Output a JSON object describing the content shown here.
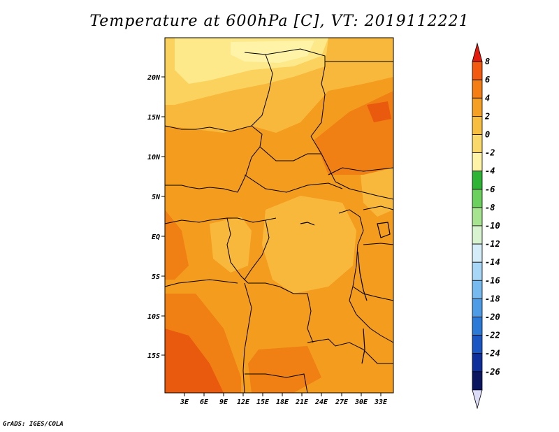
{
  "title": "Temperature at 600hPa [C], VT: 2019112221",
  "credit": "GrADS: IGES/COLA",
  "map": {
    "lat_labels": [
      "20N",
      "15N",
      "10N",
      "5N",
      "EQ",
      "5S",
      "10S",
      "15S"
    ],
    "lon_labels": [
      "3E",
      "6E",
      "9E",
      "12E",
      "15E",
      "18E",
      "21E",
      "24E",
      "27E",
      "30E",
      "33E"
    ],
    "colors": {
      "lt_m4": "#fff7b8",
      "m4_m2": "#fde88a",
      "m2_0": "#fbd25e",
      "0_2": "#f8b83c",
      "2_4": "#f49c1e",
      "4_6": "#f07f14",
      "6_8": "#ea5a0e",
      "coast": "#000000"
    }
  },
  "colorbar": {
    "labels": [
      "8",
      "6",
      "4",
      "2",
      "0",
      "-2",
      "-4",
      "-6",
      "-8",
      "-10",
      "-12",
      "-14",
      "-16",
      "-18",
      "-20",
      "-22",
      "-24",
      "-26"
    ],
    "colors": [
      "#e41a0c",
      "#f35a10",
      "#f47d14",
      "#f5a023",
      "#f8be40",
      "#fad96a",
      "#fff3a8",
      "#2eb435",
      "#6bd05d",
      "#a6e48f",
      "#d8f3d0",
      "#d5ecf9",
      "#a8d6f6",
      "#76baf0",
      "#4f9ce6",
      "#2c7ad8",
      "#1a56c4",
      "#0e2e9c",
      "#0a1660",
      "#dcdcf8"
    ]
  }
}
